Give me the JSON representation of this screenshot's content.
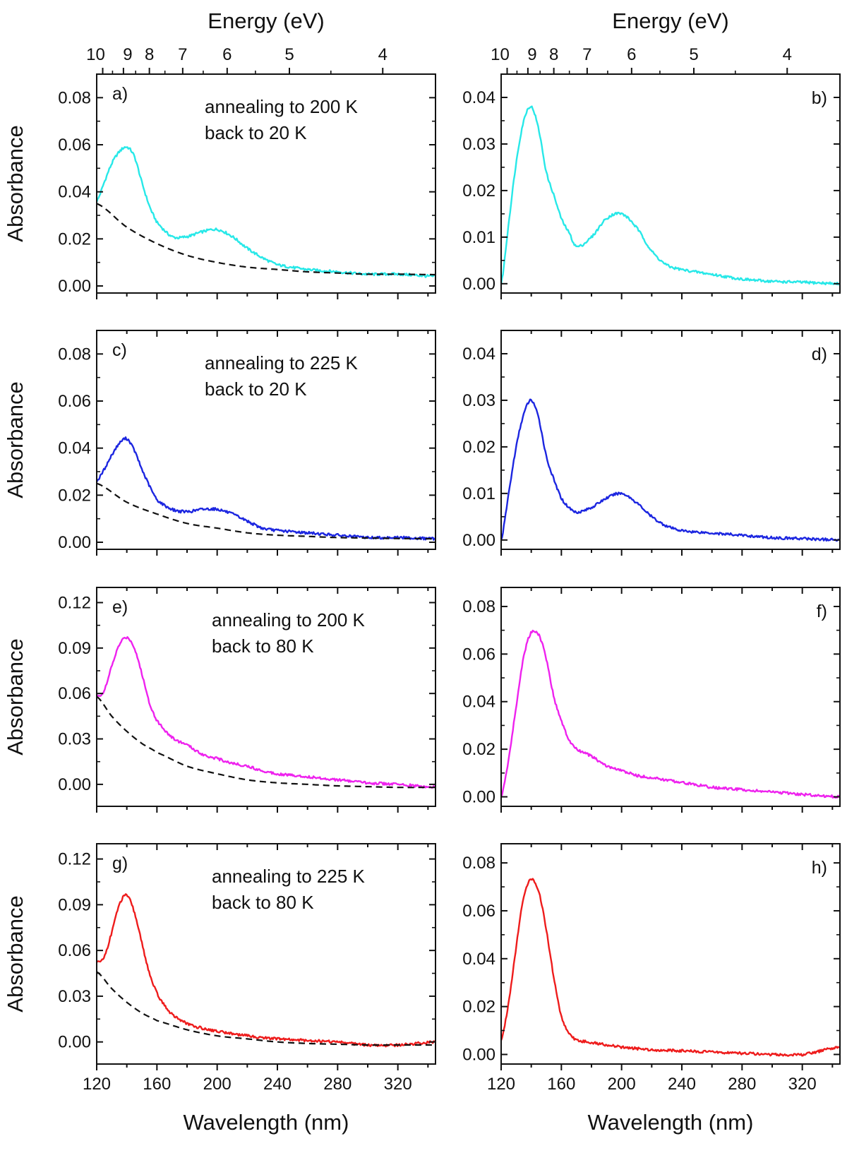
{
  "chart_data": {
    "type": "line",
    "title": "",
    "x_axis_label": "Wavelength (nm)",
    "x_ticks": [
      120,
      160,
      200,
      240,
      280,
      320
    ],
    "xlim": [
      120,
      345
    ],
    "y_axis_label": "Absorbance",
    "top_axis_label": "Energy (eV)",
    "top_axis_ticks": [
      10,
      9,
      8,
      7,
      6,
      5,
      4
    ],
    "colors": {
      "cyan": "#27e8e8",
      "blue": "#1c26e0",
      "magenta": "#ee22ee",
      "red": "#ee1c1c",
      "fit": "#111111"
    },
    "panels": [
      {
        "id": "a",
        "label": "a)",
        "column": "left",
        "row": 0,
        "annotation": [
          "annealing to 200 K",
          "back to 20 K"
        ],
        "ylim": [
          -0.003,
          0.09
        ],
        "y_ticks": [
          "0.00",
          "0.02",
          "0.04",
          "0.06",
          "0.08"
        ],
        "series": [
          {
            "name": "spectrum",
            "color_key": "cyan",
            "x": [
              120,
              125,
              130,
              135,
              140,
              145,
              150,
              155,
              160,
              170,
              180,
              190,
              200,
              210,
              220,
              230,
              240,
              260,
              280,
              300,
              320,
              345
            ],
            "y": [
              0.036,
              0.044,
              0.052,
              0.057,
              0.059,
              0.055,
              0.044,
              0.034,
              0.027,
              0.021,
              0.021,
              0.023,
              0.024,
              0.021,
              0.016,
              0.012,
              0.009,
              0.007,
              0.006,
              0.005,
              0.005,
              0.004
            ]
          },
          {
            "name": "background fit",
            "color_key": "fit",
            "dashed": true,
            "x": [
              120,
              140,
              160,
              180,
              200,
              220,
              240,
              260,
              280,
              300,
              320,
              345
            ],
            "y": [
              0.035,
              0.025,
              0.018,
              0.013,
              0.01,
              0.008,
              0.007,
              0.006,
              0.0055,
              0.005,
              0.005,
              0.0048
            ]
          }
        ]
      },
      {
        "id": "b",
        "label": "b)",
        "column": "right",
        "row": 0,
        "annotation": [],
        "ylim": [
          -0.002,
          0.045
        ],
        "y_ticks": [
          "0.00",
          "0.01",
          "0.02",
          "0.03",
          "0.04"
        ],
        "series": [
          {
            "name": "difference",
            "color_key": "cyan",
            "x": [
              120,
              125,
              130,
              135,
              140,
              145,
              150,
              155,
              160,
              165,
              170,
              180,
              190,
              200,
              210,
              220,
              230,
              240,
              260,
              280,
              300,
              320,
              345
            ],
            "y": [
              0.0,
              0.013,
              0.026,
              0.035,
              0.038,
              0.033,
              0.024,
              0.019,
              0.014,
              0.011,
              0.008,
              0.01,
              0.014,
              0.015,
              0.012,
              0.007,
              0.004,
              0.003,
              0.002,
              0.001,
              0.0005,
              0.0003,
              0.0
            ]
          }
        ]
      },
      {
        "id": "c",
        "label": "c)",
        "column": "left",
        "row": 1,
        "annotation": [
          "annealing to 225 K",
          "back to 20 K"
        ],
        "ylim": [
          -0.003,
          0.09
        ],
        "y_ticks": [
          "0.00",
          "0.02",
          "0.04",
          "0.06",
          "0.08"
        ],
        "series": [
          {
            "name": "spectrum",
            "color_key": "blue",
            "x": [
              120,
              125,
              130,
              135,
              140,
              145,
              150,
              155,
              160,
              170,
              180,
              190,
              200,
              210,
              220,
              230,
              240,
              260,
              280,
              300,
              320,
              345
            ],
            "y": [
              0.026,
              0.031,
              0.037,
              0.042,
              0.044,
              0.039,
              0.031,
              0.024,
              0.018,
              0.014,
              0.013,
              0.014,
              0.014,
              0.012,
              0.009,
              0.006,
              0.005,
              0.004,
              0.003,
              0.002,
              0.002,
              0.0015
            ]
          },
          {
            "name": "background fit",
            "color_key": "fit",
            "dashed": true,
            "x": [
              120,
              140,
              160,
              180,
              200,
              220,
              240,
              260,
              280,
              300,
              320,
              345
            ],
            "y": [
              0.025,
              0.017,
              0.012,
              0.008,
              0.006,
              0.004,
              0.003,
              0.0025,
              0.002,
              0.0018,
              0.0016,
              0.0015
            ]
          }
        ]
      },
      {
        "id": "d",
        "label": "d)",
        "column": "right",
        "row": 1,
        "annotation": [],
        "ylim": [
          -0.002,
          0.045
        ],
        "y_ticks": [
          "0.00",
          "0.01",
          "0.02",
          "0.03",
          "0.04"
        ],
        "series": [
          {
            "name": "difference",
            "color_key": "blue",
            "x": [
              120,
              125,
              130,
              135,
              140,
              145,
              150,
              155,
              160,
              165,
              170,
              180,
              190,
              200,
              210,
              220,
              230,
              240,
              260,
              280,
              300,
              320,
              345
            ],
            "y": [
              0.0,
              0.01,
              0.02,
              0.027,
              0.03,
              0.026,
              0.018,
              0.013,
              0.009,
              0.007,
              0.006,
              0.007,
              0.009,
              0.01,
              0.008,
              0.005,
              0.003,
              0.002,
              0.0015,
              0.001,
              0.0005,
              0.0003,
              0.0
            ]
          }
        ]
      },
      {
        "id": "e",
        "label": "e)",
        "column": "left",
        "row": 2,
        "annotation": [
          "annealing to 200 K",
          "back to 80 K"
        ],
        "ylim": [
          -0.0145,
          0.13
        ],
        "y_ticks": [
          "0.00",
          "0.03",
          "0.06",
          "0.09",
          "0.12"
        ],
        "series": [
          {
            "name": "spectrum",
            "color_key": "magenta",
            "x": [
              120,
              125,
              130,
              135,
              140,
              145,
              150,
              155,
              160,
              170,
              180,
              190,
              200,
              210,
              220,
              230,
              240,
              260,
              280,
              300,
              320,
              345
            ],
            "y": [
              0.058,
              0.062,
              0.078,
              0.092,
              0.097,
              0.09,
              0.073,
              0.054,
              0.042,
              0.031,
              0.026,
              0.02,
              0.017,
              0.014,
              0.012,
              0.009,
              0.007,
              0.005,
              0.003,
              0.001,
              0.0,
              -0.002
            ]
          },
          {
            "name": "background fit",
            "color_key": "fit",
            "dashed": true,
            "x": [
              120,
              130,
              140,
              150,
              160,
              180,
              200,
              220,
              240,
              260,
              280,
              300,
              320,
              345
            ],
            "y": [
              0.058,
              0.045,
              0.035,
              0.027,
              0.021,
              0.012,
              0.007,
              0.003,
              0.001,
              0.0,
              -0.001,
              -0.0015,
              -0.002,
              -0.002
            ]
          }
        ]
      },
      {
        "id": "f",
        "label": "f)",
        "column": "right",
        "row": 2,
        "annotation": [],
        "ylim": [
          -0.004,
          0.088
        ],
        "y_ticks": [
          "0.00",
          "0.02",
          "0.04",
          "0.06",
          "0.08"
        ],
        "series": [
          {
            "name": "difference",
            "color_key": "magenta",
            "x": [
              120,
              125,
              130,
              135,
              140,
              145,
              150,
              155,
              160,
              165,
              170,
              180,
              190,
              200,
              210,
              220,
              230,
              240,
              260,
              280,
              300,
              320,
              345
            ],
            "y": [
              0.0,
              0.016,
              0.038,
              0.059,
              0.069,
              0.068,
              0.058,
              0.042,
              0.032,
              0.024,
              0.02,
              0.017,
              0.013,
              0.011,
              0.009,
              0.008,
              0.007,
              0.006,
              0.004,
              0.003,
              0.002,
              0.001,
              0.0
            ]
          }
        ]
      },
      {
        "id": "g",
        "label": "g)",
        "column": "left",
        "row": 3,
        "annotation": [
          "annealing to 225 K",
          "back to 80 K"
        ],
        "ylim": [
          -0.0145,
          0.13
        ],
        "y_ticks": [
          "0.00",
          "0.03",
          "0.06",
          "0.09",
          "0.12"
        ],
        "series": [
          {
            "name": "spectrum",
            "color_key": "red",
            "x": [
              120,
              125,
              130,
              135,
              140,
              145,
              150,
              155,
              160,
              165,
              170,
              180,
              190,
              200,
              220,
              240,
              260,
              280,
              300,
              320,
              345
            ],
            "y": [
              0.052,
              0.056,
              0.072,
              0.09,
              0.096,
              0.085,
              0.065,
              0.045,
              0.032,
              0.024,
              0.018,
              0.012,
              0.009,
              0.007,
              0.004,
              0.002,
              0.001,
              0.0,
              -0.002,
              -0.002,
              0.0
            ]
          },
          {
            "name": "background fit",
            "color_key": "fit",
            "dashed": true,
            "x": [
              120,
              130,
              140,
              150,
              160,
              180,
              200,
              220,
              240,
              260,
              280,
              300,
              320,
              345
            ],
            "y": [
              0.046,
              0.035,
              0.026,
              0.019,
              0.014,
              0.008,
              0.004,
              0.002,
              0.0,
              -0.001,
              -0.0015,
              -0.002,
              -0.002,
              -0.002
            ]
          }
        ]
      },
      {
        "id": "h",
        "label": "h)",
        "column": "right",
        "row": 3,
        "annotation": [],
        "ylim": [
          -0.004,
          0.088
        ],
        "y_ticks": [
          "0.00",
          "0.02",
          "0.04",
          "0.06",
          "0.08"
        ],
        "series": [
          {
            "name": "difference",
            "color_key": "red",
            "x": [
              120,
              125,
              130,
              135,
              140,
              145,
              150,
              155,
              160,
              165,
              170,
              180,
              190,
              200,
              220,
              240,
              260,
              280,
              300,
              320,
              345
            ],
            "y": [
              0.006,
              0.022,
              0.045,
              0.066,
              0.073,
              0.068,
              0.052,
              0.032,
              0.016,
              0.009,
              0.006,
              0.005,
              0.004,
              0.003,
              0.002,
              0.0015,
              0.001,
              0.0005,
              0.0,
              0.0,
              0.003
            ]
          }
        ]
      }
    ]
  }
}
